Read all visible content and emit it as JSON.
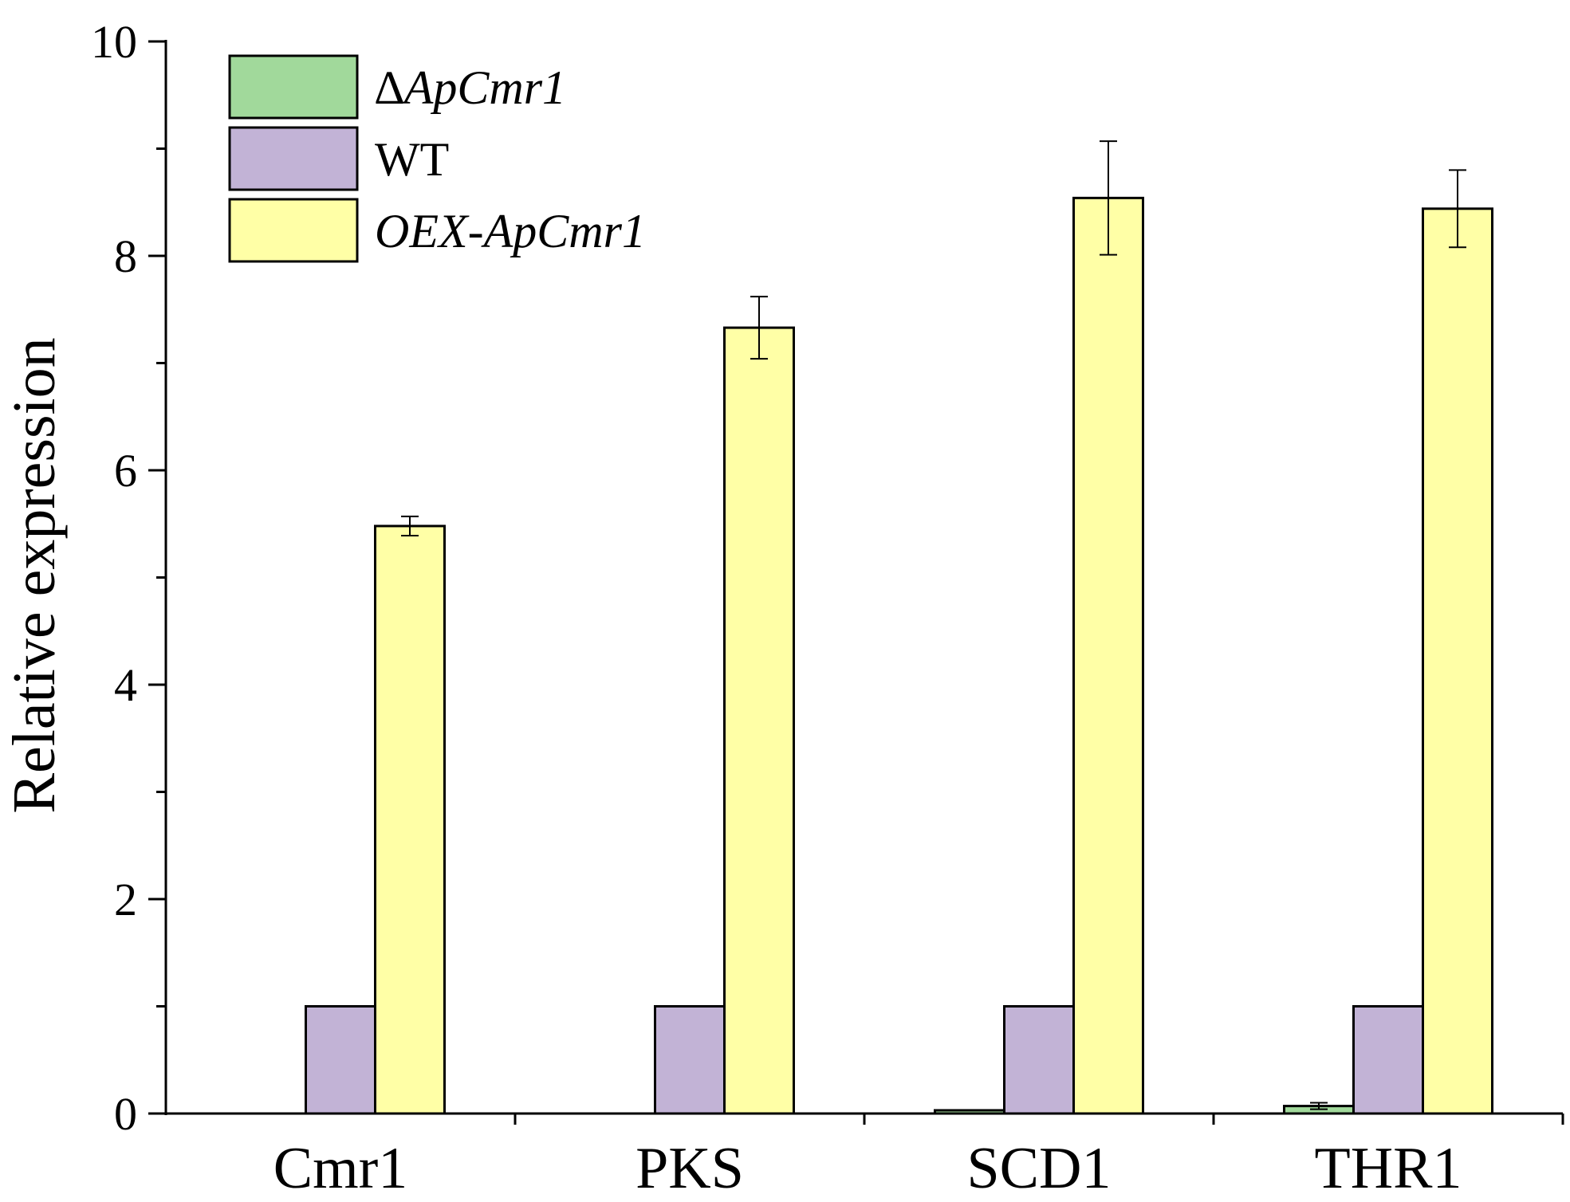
{
  "chart_data": {
    "type": "bar",
    "title": "",
    "xlabel": "",
    "ylabel": "Relative expression",
    "ylim": [
      0,
      10
    ],
    "yticks": [
      0,
      2,
      4,
      6,
      8,
      10
    ],
    "categories": [
      "Cmr1",
      "PKS",
      "SCD1",
      "THR1"
    ],
    "series": [
      {
        "name": "∆ApCmr1",
        "color": "#a1d99b",
        "italic": true,
        "values": [
          0,
          0,
          0.03,
          0.07
        ],
        "errors": [
          0,
          0,
          0,
          0.03
        ]
      },
      {
        "name": "WT",
        "color": "#c2b3d6",
        "italic": false,
        "values": [
          1,
          1,
          1,
          1
        ],
        "errors": [
          0,
          0,
          0,
          0
        ]
      },
      {
        "name": "OEX-ApCmr1",
        "color": "#ffffa6",
        "italic": true,
        "values": [
          5.48,
          7.33,
          8.54,
          8.44
        ],
        "errors": [
          0.09,
          0.29,
          0.53,
          0.36
        ]
      }
    ],
    "legend_position": "top-left",
    "grid": false
  }
}
